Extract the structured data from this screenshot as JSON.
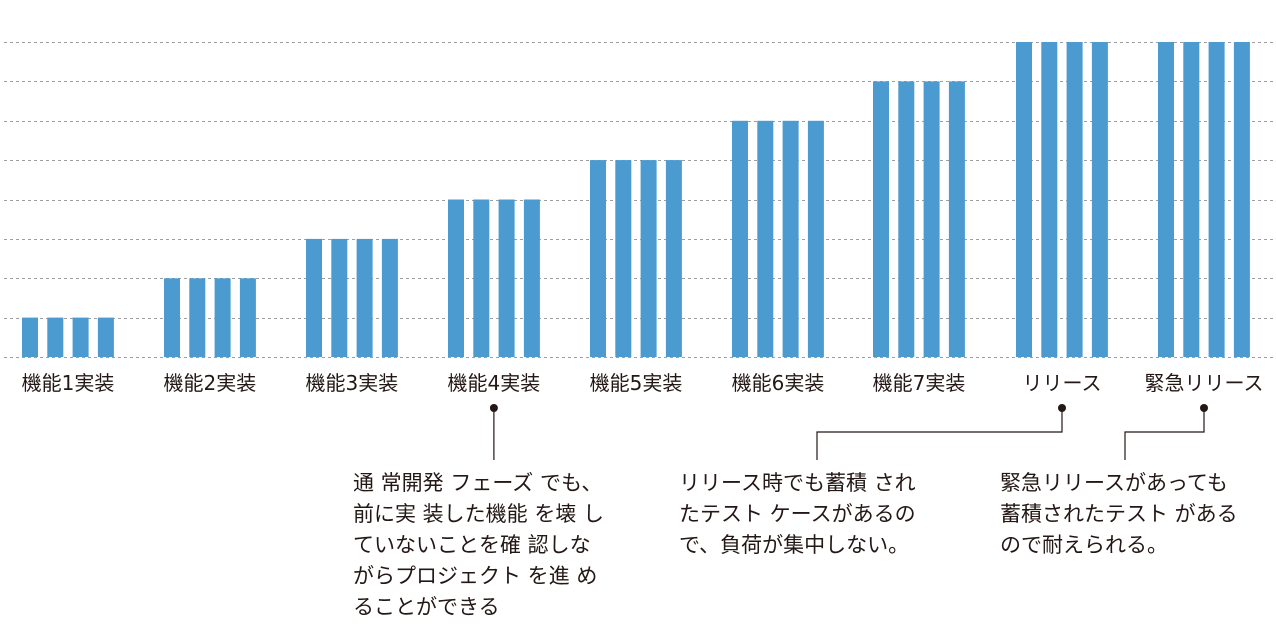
{
  "chart_data": {
    "type": "bar",
    "categories": [
      "機能1実装",
      "機能2実装",
      "機能3実装",
      "機能4実装",
      "機能5実装",
      "機能6実装",
      "機能7実装",
      "リリース",
      "緊急リリース"
    ],
    "bars_per_category": 4,
    "values": [
      1,
      2,
      3,
      4,
      5,
      6,
      7,
      8,
      8
    ],
    "ylim": [
      0,
      8
    ],
    "grid": true,
    "legend": "none",
    "title": "",
    "xlabel": "",
    "ylabel": "",
    "colors": {
      "bar": "#4b9bd0",
      "grid": "#9f9f9f",
      "text": "#231815"
    }
  },
  "annotations": [
    {
      "category_index": 3,
      "lines": [
        "通 常開発 フェーズ でも、",
        "前に実 装した機能 を壊 し",
        "ていないことを確 認しな",
        "がらプロジェクト を進 め",
        "ることができる"
      ]
    },
    {
      "category_index": 7,
      "lines": [
        "リリース時でも蓄積 され",
        "たテスト ケースがあるの",
        "で、負荷が集中しない。"
      ]
    },
    {
      "category_index": 8,
      "lines": [
        "緊急リリースがあっても",
        "蓄積されたテスト がある",
        "ので耐えられる。"
      ]
    }
  ]
}
